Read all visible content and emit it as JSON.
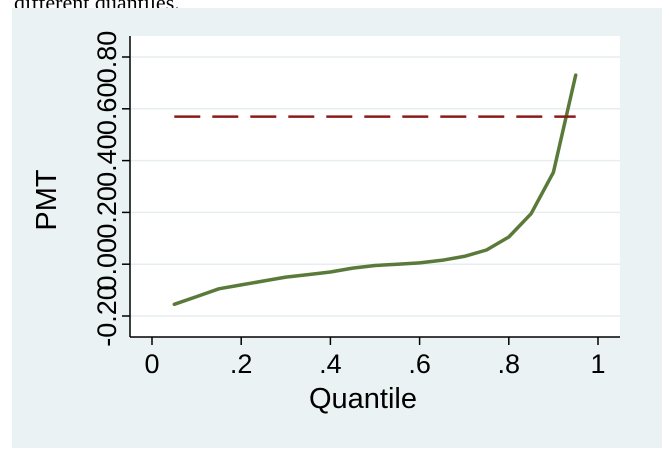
{
  "caption_fragment": "different quantiles.",
  "chart_data": {
    "type": "line",
    "title": "",
    "xlabel": "Quantile",
    "ylabel": "PMT",
    "xlim": [
      0,
      1
    ],
    "ylim": [
      -0.2,
      0.8
    ],
    "x_ticks": [
      {
        "value": 0,
        "label": "0"
      },
      {
        "value": 0.2,
        "label": ".2"
      },
      {
        "value": 0.4,
        "label": ".4"
      },
      {
        "value": 0.6,
        "label": ".6"
      },
      {
        "value": 0.8,
        "label": ".8"
      },
      {
        "value": 1,
        "label": "1"
      }
    ],
    "y_ticks": [
      {
        "value": -0.2,
        "label": "-0.20"
      },
      {
        "value": 0,
        "label": "0.00"
      },
      {
        "value": 0.2,
        "label": "0.20"
      },
      {
        "value": 0.4,
        "label": "0.40"
      },
      {
        "value": 0.6,
        "label": "0.60"
      },
      {
        "value": 0.8,
        "label": "0.80"
      }
    ],
    "grid": true,
    "series": [
      {
        "color": "#5a7a3a",
        "style": "solid",
        "x": [
          0.05,
          0.1,
          0.15,
          0.2,
          0.25,
          0.3,
          0.35,
          0.4,
          0.45,
          0.5,
          0.55,
          0.6,
          0.65,
          0.7,
          0.75,
          0.8,
          0.85,
          0.9,
          0.95
        ],
        "y": [
          -0.155,
          -0.125,
          -0.095,
          -0.08,
          -0.065,
          -0.05,
          -0.04,
          -0.03,
          -0.015,
          -0.005,
          0.0,
          0.005,
          0.015,
          0.03,
          0.055,
          0.105,
          0.195,
          0.355,
          0.73
        ]
      },
      {
        "color": "#8b1a1a",
        "style": "dashed",
        "x": [
          0.05,
          0.95
        ],
        "y": [
          0.57,
          0.57
        ]
      }
    ]
  }
}
